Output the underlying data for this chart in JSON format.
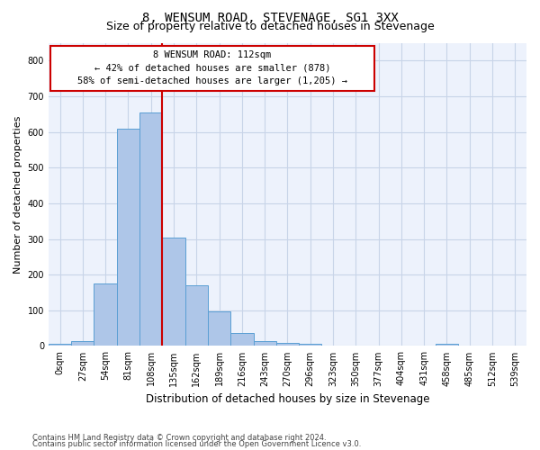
{
  "title": "8, WENSUM ROAD, STEVENAGE, SG1 3XX",
  "subtitle": "Size of property relative to detached houses in Stevenage",
  "xlabel": "Distribution of detached houses by size in Stevenage",
  "ylabel": "Number of detached properties",
  "categories": [
    "0sqm",
    "27sqm",
    "54sqm",
    "81sqm",
    "108sqm",
    "135sqm",
    "162sqm",
    "189sqm",
    "216sqm",
    "243sqm",
    "270sqm",
    "296sqm",
    "323sqm",
    "350sqm",
    "377sqm",
    "404sqm",
    "431sqm",
    "458sqm",
    "485sqm",
    "512sqm",
    "539sqm"
  ],
  "values": [
    5,
    13,
    175,
    610,
    655,
    305,
    170,
    97,
    37,
    13,
    8,
    5,
    2,
    1,
    0,
    0,
    0,
    5,
    0,
    0,
    0
  ],
  "bar_color": "#aec6e8",
  "bar_edgecolor": "#5a9fd4",
  "annotation_line1": "8 WENSUM ROAD: 112sqm",
  "annotation_line2": "← 42% of detached houses are smaller (878)",
  "annotation_line3": "58% of semi-detached houses are larger (1,205) →",
  "box_color": "#cc0000",
  "ylim": [
    0,
    850
  ],
  "yticks": [
    0,
    100,
    200,
    300,
    400,
    500,
    600,
    700,
    800
  ],
  "footer1": "Contains HM Land Registry data © Crown copyright and database right 2024.",
  "footer2": "Contains public sector information licensed under the Open Government Licence v3.0.",
  "bg_color": "#edf2fc",
  "grid_color": "#c8d4e8",
  "title_fontsize": 10,
  "subtitle_fontsize": 9,
  "tick_fontsize": 7,
  "ylabel_fontsize": 8,
  "xlabel_fontsize": 8.5,
  "footer_fontsize": 6,
  "annot_fontsize": 7.5
}
